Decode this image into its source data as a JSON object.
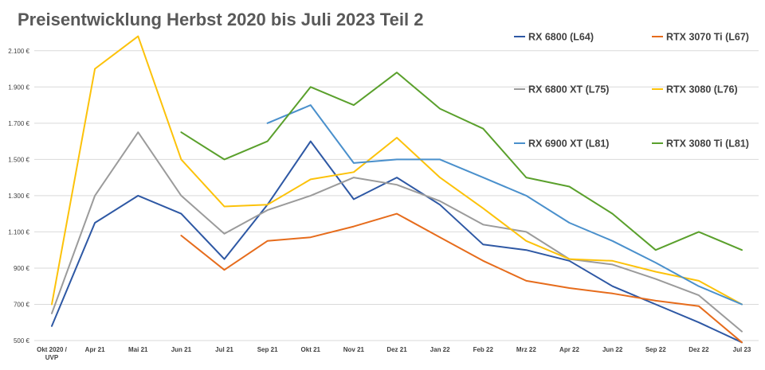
{
  "chart_data": {
    "type": "line",
    "title": "Preisentwicklung Herbst 2020 bis Juli 2023 Teil 2",
    "xlabel": "",
    "ylabel": "",
    "categories": [
      "Okt 2020 / UVP",
      "Apr 21",
      "Mai 21",
      "Jun 21",
      "Jul 21",
      "Sep 21",
      "Okt 21",
      "Nov 21",
      "Dez 21",
      "Jan 22",
      "Feb 22",
      "Mrz 22",
      "Apr 22",
      "Jun 22",
      "Sep 22",
      "Dez 22",
      "Jul 23"
    ],
    "ylim": [
      500,
      2200
    ],
    "y_ticks": [
      500,
      700,
      900,
      1100,
      1300,
      1500,
      1700,
      1900,
      2100
    ],
    "y_tick_labels": [
      "500 €",
      "700 €",
      "900 €",
      "1.100 €",
      "1.300 €",
      "1.500 €",
      "1.700 €",
      "1.900 €",
      "2.100 €"
    ],
    "grid": true,
    "legend_position": "top-right",
    "series": [
      {
        "name": "RX 6800 (L64)",
        "color": "#2e58a4",
        "values": [
          580,
          1150,
          1300,
          1200,
          950,
          1250,
          1600,
          1280,
          1400,
          1250,
          1030,
          1000,
          940,
          800,
          700,
          600,
          490
        ]
      },
      {
        "name": "RTX 3070 Ti (L67)",
        "color": "#e66c1c",
        "values": [
          null,
          null,
          null,
          1080,
          890,
          1050,
          1070,
          1130,
          1200,
          1070,
          940,
          830,
          790,
          760,
          720,
          690,
          490
        ]
      },
      {
        "name": "RX 6800 XT (L75)",
        "color": "#9b9b9b",
        "values": [
          650,
          1300,
          1650,
          1300,
          1090,
          1220,
          1300,
          1400,
          1360,
          1270,
          1140,
          1100,
          950,
          920,
          840,
          750,
          550
        ]
      },
      {
        "name": "RTX 3080 (L76)",
        "color": "#fcc20a",
        "values": [
          700,
          2000,
          2180,
          1500,
          1240,
          1250,
          1390,
          1430,
          1620,
          1400,
          1230,
          1050,
          950,
          940,
          880,
          830,
          700
        ]
      },
      {
        "name": "RX 6900 XT (L81)",
        "color": "#4a90cc",
        "values": [
          null,
          null,
          null,
          null,
          null,
          1700,
          1800,
          1480,
          1500,
          1500,
          1400,
          1300,
          1150,
          1050,
          930,
          800,
          700
        ]
      },
      {
        "name": "RTX 3080 Ti (L81)",
        "color": "#5aa02c",
        "values": [
          null,
          null,
          null,
          1650,
          1500,
          1600,
          1900,
          1800,
          1980,
          1780,
          1670,
          1400,
          1350,
          1200,
          1000,
          1100,
          1000
        ]
      }
    ]
  }
}
